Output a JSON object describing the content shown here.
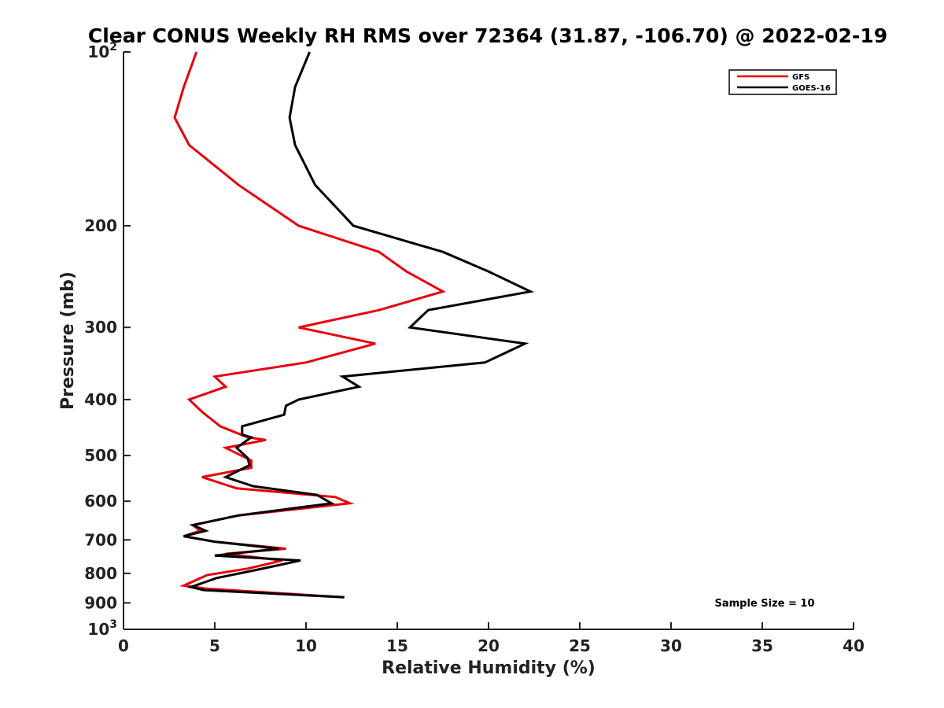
{
  "chart_data": {
    "type": "line",
    "title": "Clear CONUS Weekly RH RMS over 72364 (31.87, -106.70) @ 2022-02-19",
    "xlabel": "Relative Humidity (%)",
    "ylabel": "Pressure (mb)",
    "xlim": [
      0,
      40
    ],
    "ylim": [
      100,
      1000
    ],
    "y_scale": "log",
    "y_reversed": true,
    "x_ticks": [
      "0",
      "5",
      "10",
      "15",
      "20",
      "25",
      "30",
      "35",
      "40"
    ],
    "y_ticks": [
      {
        "value": 100,
        "base": "10",
        "exp": "2"
      },
      {
        "value": 200,
        "label": "200"
      },
      {
        "value": 300,
        "label": "300"
      },
      {
        "value": 400,
        "label": "400"
      },
      {
        "value": 500,
        "label": "500"
      },
      {
        "value": 600,
        "label": "600"
      },
      {
        "value": 700,
        "label": "700"
      },
      {
        "value": 800,
        "label": "800"
      },
      {
        "value": 900,
        "label": "900"
      },
      {
        "value": 1000,
        "base": "10",
        "exp": "3"
      }
    ],
    "legend_position": "top-right",
    "annotation": "Sample Size = 10",
    "series": [
      {
        "name": "GFS",
        "color": "#e8000b",
        "points": [
          [
            4.0,
            100
          ],
          [
            3.3,
            115
          ],
          [
            2.8,
            130
          ],
          [
            3.6,
            145
          ],
          [
            6.3,
            170
          ],
          [
            9.6,
            200
          ],
          [
            14.0,
            222
          ],
          [
            15.5,
            240
          ],
          [
            17.5,
            260
          ],
          [
            14.0,
            280
          ],
          [
            9.6,
            300
          ],
          [
            13.8,
            320
          ],
          [
            10.0,
            345
          ],
          [
            5.0,
            365
          ],
          [
            5.6,
            380
          ],
          [
            3.6,
            400
          ],
          [
            4.3,
            420
          ],
          [
            5.3,
            445
          ],
          [
            6.8,
            465
          ],
          [
            7.8,
            470
          ],
          [
            5.6,
            485
          ],
          [
            7.0,
            510
          ],
          [
            7.0,
            525
          ],
          [
            4.3,
            545
          ],
          [
            6.2,
            570
          ],
          [
            11.6,
            590
          ],
          [
            12.4,
            605
          ],
          [
            6.3,
            635
          ],
          [
            3.8,
            660
          ],
          [
            4.2,
            675
          ],
          [
            3.3,
            690
          ],
          [
            5.0,
            705
          ],
          [
            8.9,
            725
          ],
          [
            5.6,
            740
          ],
          [
            8.7,
            760
          ],
          [
            6.8,
            785
          ],
          [
            4.6,
            805
          ],
          [
            3.3,
            840
          ],
          [
            4.5,
            850
          ],
          [
            12.1,
            880
          ]
        ]
      },
      {
        "name": "GOES-16",
        "color": "#000000",
        "points": [
          [
            10.2,
            100
          ],
          [
            9.4,
            115
          ],
          [
            9.1,
            130
          ],
          [
            9.4,
            145
          ],
          [
            10.5,
            170
          ],
          [
            12.6,
            200
          ],
          [
            17.5,
            222
          ],
          [
            20.0,
            240
          ],
          [
            22.3,
            260
          ],
          [
            16.7,
            280
          ],
          [
            15.7,
            300
          ],
          [
            22.0,
            320
          ],
          [
            19.8,
            345
          ],
          [
            12.0,
            365
          ],
          [
            12.9,
            380
          ],
          [
            9.6,
            400
          ],
          [
            8.9,
            410
          ],
          [
            8.8,
            425
          ],
          [
            6.5,
            445
          ],
          [
            6.5,
            460
          ],
          [
            7.0,
            465
          ],
          [
            6.2,
            485
          ],
          [
            6.8,
            505
          ],
          [
            6.9,
            520
          ],
          [
            5.6,
            545
          ],
          [
            7.1,
            565
          ],
          [
            10.6,
            585
          ],
          [
            11.4,
            605
          ],
          [
            6.3,
            635
          ],
          [
            3.8,
            660
          ],
          [
            4.5,
            675
          ],
          [
            3.3,
            690
          ],
          [
            5.0,
            705
          ],
          [
            8.5,
            725
          ],
          [
            5.0,
            745
          ],
          [
            9.7,
            760
          ],
          [
            7.2,
            790
          ],
          [
            5.1,
            815
          ],
          [
            3.7,
            845
          ],
          [
            4.4,
            855
          ],
          [
            12.1,
            880
          ]
        ]
      }
    ]
  }
}
